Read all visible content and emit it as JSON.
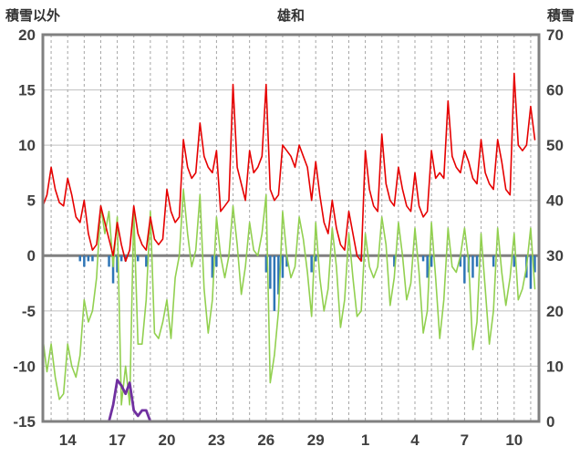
{
  "header": {
    "left_label": "積雪以外",
    "title": "雄和",
    "right_label": "積雪"
  },
  "chart_data": {
    "type": "line",
    "title": "雄和",
    "left_axis": {
      "label": "積雪以外",
      "min": -15,
      "max": 20,
      "ticks": [
        20,
        15,
        10,
        5,
        0,
        -5,
        -10,
        -15
      ]
    },
    "right_axis": {
      "label": "積雪",
      "min": 0,
      "max": 70,
      "ticks": [
        70,
        60,
        50,
        40,
        30,
        20,
        10,
        0
      ]
    },
    "x_axis": {
      "unit": "days",
      "domain": [
        0,
        30
      ],
      "tick_labels": [
        "14",
        "17",
        "20",
        "23",
        "26",
        "29",
        "1",
        "4",
        "7",
        "10"
      ],
      "tick_offsets": [
        1.5,
        4.5,
        7.5,
        10.5,
        13.5,
        16.5,
        19.5,
        22.5,
        25.5,
        28.5
      ],
      "daily_dashed_gridlines": true
    },
    "x_step": 0.25,
    "colors": {
      "border": "#808080",
      "grid": "#c0c0c0",
      "grid_dashed": "#a6a6a6",
      "zero_line": "#808080",
      "text": "#404040",
      "red": "#e60000",
      "green": "#92d050",
      "blue": "#2e75b6",
      "purple": "#7030a0"
    },
    "series": [
      {
        "name": "blue-bars",
        "type": "bar",
        "axis": "left",
        "color": "#2e75b6",
        "values": [
          0,
          0,
          0,
          0,
          0,
          0,
          0,
          0,
          0,
          -0.5,
          -1,
          -0.5,
          -0.5,
          0,
          0,
          0,
          -1,
          -2.5,
          -1.5,
          -0.5,
          -0.5,
          0,
          0,
          -0.5,
          0,
          -1,
          0,
          0,
          0,
          0,
          0,
          0,
          0,
          0,
          0,
          0,
          0,
          0,
          0,
          0,
          0,
          -2,
          -1,
          0,
          0,
          0,
          0,
          0,
          0,
          0,
          0,
          0,
          0,
          0,
          -1.5,
          -3,
          -5,
          -3.5,
          -2,
          -1,
          0,
          0,
          0,
          0,
          0,
          -1.5,
          -0.5,
          0,
          0,
          0,
          0,
          0,
          0,
          0,
          0,
          0,
          0,
          -0.5,
          0,
          0,
          0,
          0,
          0,
          0,
          0,
          -1,
          0,
          0,
          0,
          0,
          0,
          0,
          -0.5,
          -2,
          -1,
          0,
          0,
          0,
          0,
          0,
          0,
          -1,
          -2.5,
          -1.5,
          -2,
          -1,
          0,
          0,
          0,
          -1,
          0,
          0,
          0,
          0,
          -1,
          0,
          0,
          -2,
          -3,
          -1.5
        ]
      },
      {
        "name": "green-line",
        "type": "line",
        "axis": "left",
        "color": "#92d050",
        "values": [
          -7.5,
          -10.5,
          -8,
          -11,
          -13,
          -12.5,
          -8,
          -10,
          -11,
          -9,
          -4,
          -6,
          -5,
          -2,
          4.5,
          2,
          4,
          -1,
          3.5,
          -13.5,
          -10,
          -13.5,
          4,
          -8,
          -8,
          -4,
          4,
          -7,
          -7.5,
          -6,
          -4,
          -7.5,
          -2,
          0,
          6,
          2,
          -1,
          0.5,
          5.5,
          -3,
          -7,
          -4,
          3.5,
          0,
          -2,
          0,
          4.5,
          1,
          -3.5,
          -1,
          3,
          0.5,
          0,
          2,
          5.5,
          -11.5,
          -9,
          -5,
          4,
          0,
          -2,
          -1,
          3.5,
          1.5,
          -1.5,
          -5.5,
          3,
          -2,
          -5,
          -3,
          2.5,
          -1,
          -6.5,
          -4,
          2,
          -2,
          -5.5,
          -5,
          2,
          -1,
          -2,
          -1,
          3.5,
          1,
          -4.5,
          -2,
          3,
          0,
          -4,
          -2.5,
          2.5,
          -1.5,
          -7,
          -5,
          3,
          -2,
          -7.5,
          -4,
          2.5,
          -1,
          -1.5,
          0,
          2.5,
          -0.5,
          -8.5,
          -6,
          2,
          -3,
          -8,
          -5,
          2.5,
          -1.5,
          -4.5,
          -2,
          2,
          -4,
          -3,
          -1,
          2.5,
          -3
        ]
      },
      {
        "name": "red-line",
        "type": "line",
        "axis": "left",
        "color": "#e60000",
        "values": [
          4.5,
          5.5,
          8,
          6,
          4.8,
          4.5,
          7,
          5.5,
          3.5,
          3,
          5,
          2,
          0.5,
          1,
          4.5,
          3,
          1.5,
          0,
          3,
          1,
          -0.5,
          0.5,
          4.5,
          2,
          1,
          0.5,
          3.5,
          1.5,
          1,
          1.5,
          6,
          4,
          3,
          3.5,
          10.5,
          8,
          7,
          7.5,
          12,
          9,
          8,
          7.5,
          9.5,
          4,
          4.5,
          5,
          15.5,
          8,
          6.5,
          5,
          9.5,
          7.5,
          8,
          9,
          15.5,
          6,
          5,
          5.5,
          10,
          9.5,
          9,
          8,
          10,
          9,
          8,
          5,
          8.5,
          5.5,
          3,
          2,
          5,
          2.5,
          1,
          0.5,
          4,
          2,
          0,
          -0.5,
          9.5,
          6,
          4.5,
          4,
          11,
          6.5,
          5,
          4.5,
          8,
          6,
          4.5,
          4,
          7.5,
          4.5,
          3.5,
          4,
          9.5,
          7,
          7.5,
          7,
          14,
          9,
          8,
          7.5,
          9.5,
          8.5,
          7,
          6.5,
          10.5,
          7.5,
          6.5,
          6,
          10.5,
          8.5,
          6,
          5.5,
          16.5,
          10,
          9.5,
          10,
          13.5,
          10.5
        ]
      },
      {
        "name": "purple-snow-line",
        "type": "line",
        "axis": "right",
        "color": "#7030a0",
        "values": [
          null,
          null,
          null,
          null,
          null,
          null,
          null,
          null,
          null,
          null,
          null,
          null,
          null,
          null,
          null,
          null,
          0,
          3,
          7.5,
          6.5,
          5,
          7,
          2,
          1,
          2,
          2,
          0,
          0,
          0,
          0,
          0,
          0,
          0,
          0,
          0,
          0,
          0,
          0,
          0,
          0,
          0,
          0,
          0,
          0,
          0,
          0,
          0,
          0,
          0,
          0,
          0,
          0,
          0,
          0,
          0,
          0,
          0,
          0,
          0,
          0,
          0,
          0,
          0,
          0,
          0,
          0,
          0,
          0,
          0,
          0,
          0,
          0,
          0,
          0,
          0,
          0,
          0,
          0,
          0,
          0,
          0,
          0,
          0,
          0,
          0,
          0,
          0,
          0,
          0,
          0,
          0,
          0,
          0,
          0,
          0,
          0,
          0,
          0,
          0,
          0,
          0,
          0,
          0,
          0,
          0,
          0,
          0,
          0,
          0,
          0,
          0,
          0,
          0,
          0,
          0,
          0,
          0,
          0,
          0,
          0
        ]
      }
    ]
  }
}
